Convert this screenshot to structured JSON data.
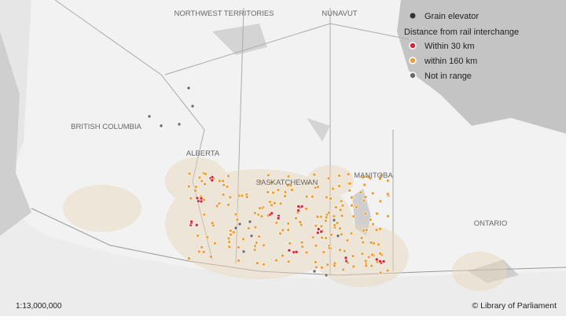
{
  "map": {
    "labels": [
      "NORTHWEST TERRITORIES",
      "NUNAVUT",
      "BRITISH COLUMBIA",
      "ALBERTA",
      "SASKATCHEWAN",
      "MANITOBA",
      "ONTARIO"
    ],
    "legend": {
      "elevator": "Grain elevator",
      "title": "Distance from rail interchange",
      "items": [
        "Within 30 km",
        "within 160 km",
        "Not in range"
      ]
    },
    "scale": "1:13,000,000",
    "credit": "© Library of Parliament"
  }
}
